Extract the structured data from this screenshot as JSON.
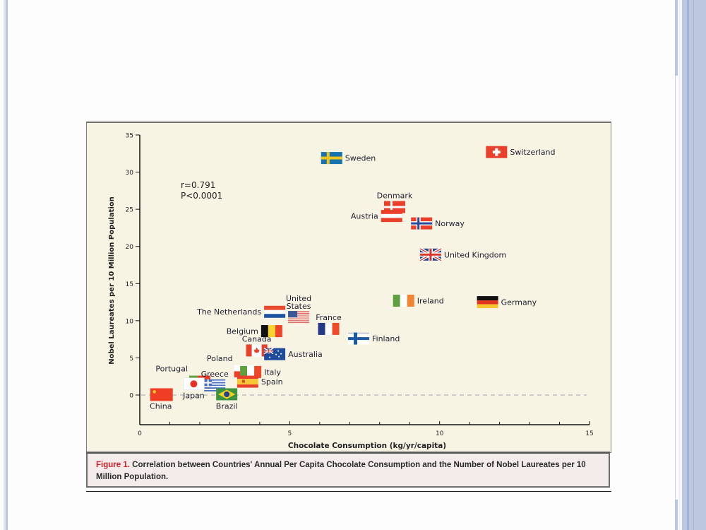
{
  "slide": {
    "caption_label": "Figure 1.",
    "caption_text": " Correlation between Countries' Annual Per Capita Chocolate Consumption and the Number of Nobel Laureates per 10 Million Population."
  },
  "chart_data": {
    "type": "scatter",
    "title": "",
    "xlabel": "Chocolate Consumption (kg/yr/capita)",
    "ylabel": "Nobel Laureates per 10 Million Population",
    "xlim": [
      0,
      15
    ],
    "ylim": [
      -4,
      35
    ],
    "xticks": [
      0,
      5,
      10,
      15
    ],
    "xminor_step": 1,
    "yticks": [
      0,
      5,
      10,
      15,
      20,
      25,
      30,
      35
    ],
    "reference_line": {
      "y": 0,
      "style": "dashed"
    },
    "annotation": [
      "r=0.791",
      "P<0.0001"
    ],
    "grid": false,
    "marker": "country flag",
    "points": [
      {
        "country": "Switzerland",
        "x": 11.9,
        "y": 32.7,
        "label_pos": "right"
      },
      {
        "country": "Sweden",
        "x": 6.4,
        "y": 31.9,
        "label_pos": "right"
      },
      {
        "country": "Denmark",
        "x": 8.5,
        "y": 25.3,
        "label_pos": "top"
      },
      {
        "country": "Austria",
        "x": 8.4,
        "y": 24.1,
        "label_pos": "left"
      },
      {
        "country": "Norway",
        "x": 9.4,
        "y": 23.1,
        "label_pos": "right"
      },
      {
        "country": "United Kingdom",
        "x": 9.7,
        "y": 18.9,
        "label_pos": "right"
      },
      {
        "country": "Ireland",
        "x": 8.8,
        "y": 12.7,
        "label_pos": "right"
      },
      {
        "country": "Germany",
        "x": 11.6,
        "y": 12.5,
        "label_pos": "right"
      },
      {
        "country": "The Netherlands",
        "x": 4.5,
        "y": 11.2,
        "label_pos": "left"
      },
      {
        "country": "United States",
        "x": 5.3,
        "y": 10.5,
        "label_pos": "top"
      },
      {
        "country": "France",
        "x": 6.3,
        "y": 8.9,
        "label_pos": "top"
      },
      {
        "country": "Finland",
        "x": 7.3,
        "y": 7.6,
        "label_pos": "right"
      },
      {
        "country": "Belgium",
        "x": 4.4,
        "y": 8.6,
        "label_pos": "left"
      },
      {
        "country": "Canada",
        "x": 3.9,
        "y": 6.0,
        "label_pos": "top"
      },
      {
        "country": "Australia",
        "x": 4.5,
        "y": 5.5,
        "label_pos": "right"
      },
      {
        "country": "Poland",
        "x": 3.5,
        "y": 3.2,
        "label_pos": "top-left"
      },
      {
        "country": "Italy",
        "x": 3.7,
        "y": 3.1,
        "label_pos": "right"
      },
      {
        "country": "Spain",
        "x": 3.6,
        "y": 1.8,
        "label_pos": "right"
      },
      {
        "country": "Portugal",
        "x": 2.0,
        "y": 1.8,
        "label_pos": "top-left"
      },
      {
        "country": "Greece",
        "x": 2.5,
        "y": 1.3,
        "label_pos": "top"
      },
      {
        "country": "Japan",
        "x": 1.8,
        "y": 1.5,
        "label_pos": "bottom"
      },
      {
        "country": "Brazil",
        "x": 2.9,
        "y": 0.1,
        "label_pos": "bottom"
      },
      {
        "country": "China",
        "x": 0.7,
        "y": 0.1,
        "label_pos": "bottom"
      }
    ]
  }
}
